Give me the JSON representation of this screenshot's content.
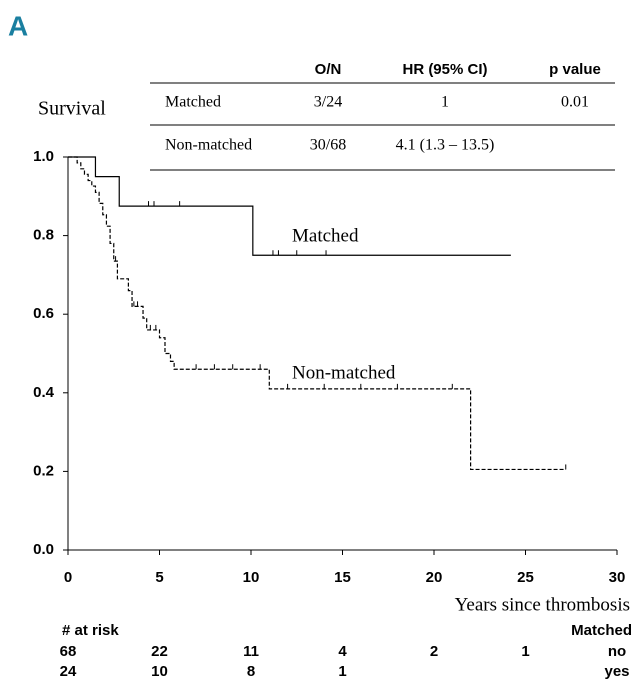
{
  "panel": "A",
  "chart_data": {
    "type": "kaplan-meier",
    "ylabel": "Survival",
    "xlabel": "Years since thrombosis",
    "xlim": [
      0,
      30
    ],
    "xticks": [
      0,
      5,
      10,
      15,
      20,
      25,
      30
    ],
    "ylim": [
      0,
      1
    ],
    "yticks": [
      {
        "value": 0,
        "label": "0.0"
      },
      {
        "value": 0.2,
        "label": "0.2"
      },
      {
        "value": 0.4,
        "label": "0.4"
      },
      {
        "value": 0.6,
        "label": "0.6"
      },
      {
        "value": 0.8,
        "label": "0.8"
      },
      {
        "value": 1,
        "label": "1.0"
      }
    ],
    "series": [
      {
        "name": "Matched",
        "color": "#000000",
        "style": "solid",
        "x": [
          0,
          1.5,
          2.8,
          10.1,
          24.2
        ],
        "values": [
          1,
          0.95,
          0.875,
          0.75,
          0.75
        ],
        "censor_x": [
          4.4,
          4.7,
          6.1,
          11.2,
          11.5,
          12.5,
          14.1
        ]
      },
      {
        "name": "Non-matched",
        "color": "#000000",
        "style": "dashed",
        "x": [
          0,
          0.5,
          0.7,
          0.9,
          1.1,
          1.3,
          1.5,
          1.7,
          1.9,
          2.1,
          2.3,
          2.5,
          2.7,
          3.3,
          3.5,
          4.1,
          4.3,
          5.0,
          5.3,
          5.6,
          5.8,
          11.0,
          22.0,
          27.2
        ],
        "values": [
          1,
          0.985,
          0.97,
          0.956,
          0.94,
          0.926,
          0.91,
          0.882,
          0.853,
          0.824,
          0.78,
          0.735,
          0.69,
          0.66,
          0.62,
          0.59,
          0.56,
          0.54,
          0.5,
          0.48,
          0.46,
          0.41,
          0.205,
          0.205
        ],
        "censor_x": [
          2.6,
          3.6,
          3.8,
          4.5,
          4.8,
          7.0,
          8.0,
          9.0,
          10.5,
          12.0,
          14.0,
          16.0,
          18.0,
          21.0,
          27.2
        ]
      }
    ]
  },
  "table": {
    "headers": [
      "O/N",
      "HR (95% CI)",
      "p value"
    ],
    "rows": [
      [
        "Matched",
        "3/24",
        "1",
        "0.01"
      ],
      [
        "Non-matched",
        "30/68",
        "4.1 (1.3 – 13.5)"
      ]
    ]
  },
  "at_risk": {
    "title": "# at risk",
    "group_label": "Matched",
    "rows": [
      {
        "values": [
          68,
          22,
          11,
          4,
          2,
          1
        ],
        "group": "no"
      },
      {
        "values": [
          24,
          10,
          8,
          1
        ],
        "group": "yes"
      }
    ]
  }
}
